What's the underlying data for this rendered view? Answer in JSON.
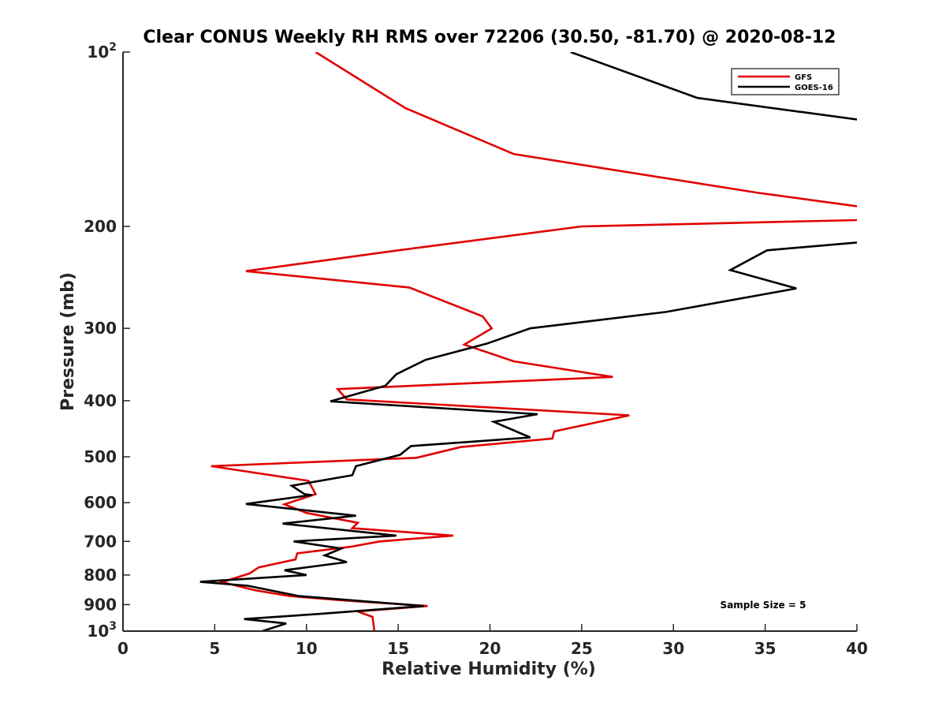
{
  "chart_data": {
    "type": "line",
    "title": "Clear CONUS Weekly RH RMS over 72206 (30.50, -81.70) @ 2020-08-12",
    "xlabel": "Relative Humidity (%)",
    "ylabel": "Pressure (mb)",
    "xlim": [
      0,
      40
    ],
    "ylim": [
      100,
      1000
    ],
    "y_scale": "log",
    "y_reversed": true,
    "x_ticks": [
      "0",
      "5",
      "10",
      "15",
      "20",
      "25",
      "30",
      "35",
      "40"
    ],
    "y_ticks": [
      {
        "value": 100,
        "base": "10",
        "exp": "2"
      },
      {
        "value": 200,
        "base": "200",
        "exp": ""
      },
      {
        "value": 300,
        "base": "300",
        "exp": ""
      },
      {
        "value": 400,
        "base": "400",
        "exp": ""
      },
      {
        "value": 500,
        "base": "500",
        "exp": ""
      },
      {
        "value": 600,
        "base": "600",
        "exp": ""
      },
      {
        "value": 700,
        "base": "700",
        "exp": ""
      },
      {
        "value": 800,
        "base": "800",
        "exp": ""
      },
      {
        "value": 900,
        "base": "900",
        "exp": ""
      },
      {
        "value": 1000,
        "base": "10",
        "exp": "3"
      }
    ],
    "grid": false,
    "legend_position": "top-right",
    "annotation": "Sample Size = 5",
    "series": [
      {
        "name": "GFS",
        "color": "#e00000",
        "points": [
          [
            10.5,
            100
          ],
          [
            15.4,
            125
          ],
          [
            21.3,
            150
          ],
          [
            34.6,
            175
          ],
          [
            40.2,
            185
          ],
          [
            40.2,
            195
          ],
          [
            25.0,
            200
          ],
          [
            15.0,
            220
          ],
          [
            6.7,
            239
          ],
          [
            15.6,
            255
          ],
          [
            19.6,
            286
          ],
          [
            20.1,
            300
          ],
          [
            18.6,
            320
          ],
          [
            21.3,
            342
          ],
          [
            26.7,
            364
          ],
          [
            11.7,
            382
          ],
          [
            12.2,
            398
          ],
          [
            27.6,
            424
          ],
          [
            23.5,
            452
          ],
          [
            23.4,
            465
          ],
          [
            18.4,
            481
          ],
          [
            16.0,
            502
          ],
          [
            4.8,
            519
          ],
          [
            10.1,
            550
          ],
          [
            10.5,
            580
          ],
          [
            8.8,
            604
          ],
          [
            10.0,
            625
          ],
          [
            12.8,
            650
          ],
          [
            12.5,
            664
          ],
          [
            18.0,
            684
          ],
          [
            14.0,
            700
          ],
          [
            12.4,
            715
          ],
          [
            9.5,
            734
          ],
          [
            9.4,
            752
          ],
          [
            7.4,
            776
          ],
          [
            6.9,
            795
          ],
          [
            5.4,
            823
          ],
          [
            7.2,
            850
          ],
          [
            9.1,
            870
          ],
          [
            12.0,
            885
          ],
          [
            16.6,
            905
          ],
          [
            12.8,
            925
          ],
          [
            13.6,
            945
          ],
          [
            13.7,
            1000
          ]
        ]
      },
      {
        "name": "GOES-16",
        "color": "#000000",
        "points": [
          [
            24.4,
            100
          ],
          [
            31.3,
            120
          ],
          [
            40.2,
            131
          ],
          [
            40.2,
            213
          ],
          [
            35.1,
            220
          ],
          [
            33.1,
            238
          ],
          [
            36.7,
            256
          ],
          [
            29.6,
            281
          ],
          [
            22.2,
            300
          ],
          [
            19.8,
            319
          ],
          [
            16.5,
            340
          ],
          [
            14.9,
            360
          ],
          [
            14.3,
            377
          ],
          [
            11.3,
            401
          ],
          [
            22.6,
            422
          ],
          [
            20.2,
            435
          ],
          [
            22.2,
            463
          ],
          [
            15.7,
            479
          ],
          [
            15.1,
            496
          ],
          [
            12.7,
            519
          ],
          [
            12.5,
            538
          ],
          [
            9.2,
            561
          ],
          [
            9.9,
            580
          ],
          [
            10.3,
            582
          ],
          [
            6.7,
            603
          ],
          [
            12.7,
            632
          ],
          [
            8.7,
            652
          ],
          [
            14.9,
            684
          ],
          [
            9.3,
            700
          ],
          [
            11.9,
            720
          ],
          [
            11.0,
            740
          ],
          [
            12.2,
            760
          ],
          [
            8.8,
            785
          ],
          [
            10.0,
            800
          ],
          [
            4.2,
            822
          ],
          [
            6.8,
            835
          ],
          [
            9.6,
            870
          ],
          [
            16.4,
            905
          ],
          [
            10.7,
            934
          ],
          [
            6.6,
            953
          ],
          [
            8.9,
            970
          ],
          [
            7.6,
            1000
          ]
        ]
      }
    ]
  }
}
